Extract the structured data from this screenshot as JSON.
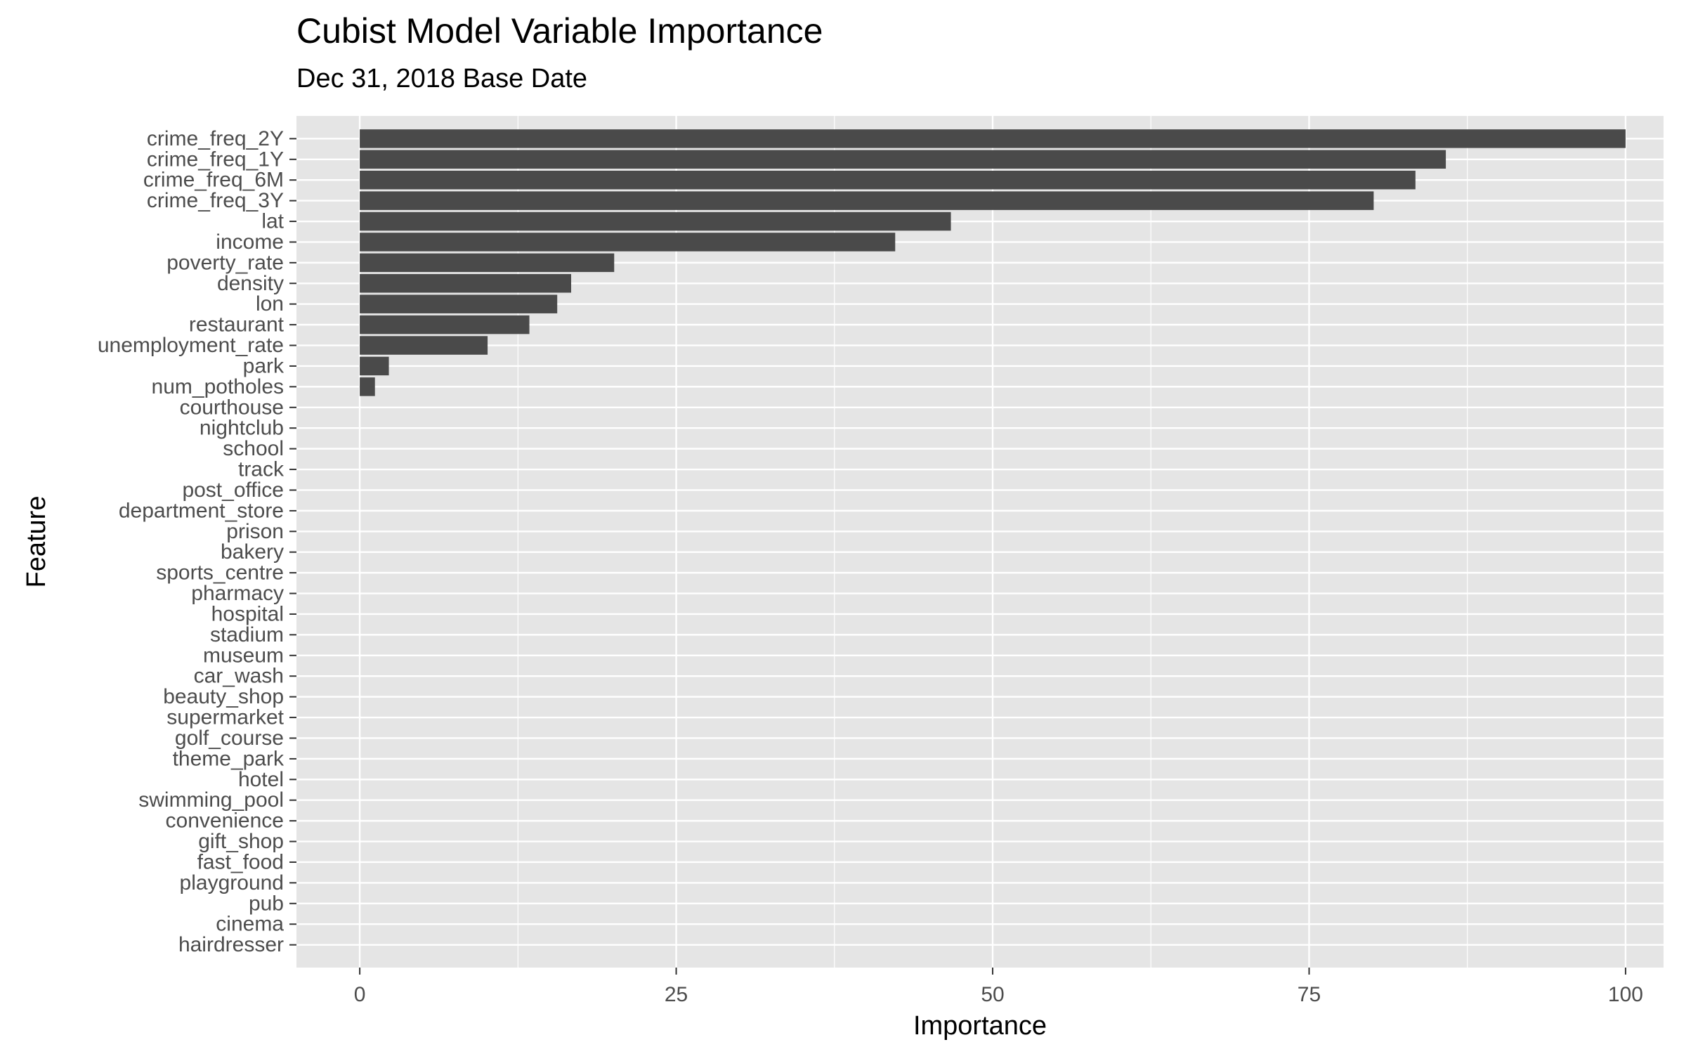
{
  "chart_data": {
    "type": "bar",
    "orientation": "horizontal",
    "title": "Cubist Model Variable Importance",
    "subtitle": "Dec 31, 2018 Base Date",
    "xlabel": "Importance",
    "ylabel": "Feature",
    "xlim": [
      -5,
      103
    ],
    "xticks": [
      0,
      25,
      50,
      75,
      100
    ],
    "grid": true,
    "legend": "none",
    "colors": {
      "panel": "#e5e5e5",
      "grid": "#ffffff",
      "bar": "#4a4a4a",
      "tick_text": "#4d4d4d",
      "tick_mark": "#333333"
    },
    "categories": [
      "crime_freq_2Y",
      "crime_freq_1Y",
      "crime_freq_6M",
      "crime_freq_3Y",
      "lat",
      "income",
      "poverty_rate",
      "density",
      "lon",
      "restaurant",
      "unemployment_rate",
      "park",
      "num_potholes",
      "courthouse",
      "nightclub",
      "school",
      "track",
      "post_office",
      "department_store",
      "prison",
      "bakery",
      "sports_centre",
      "pharmacy",
      "hospital",
      "stadium",
      "museum",
      "car_wash",
      "beauty_shop",
      "supermarket",
      "golf_course",
      "theme_park",
      "hotel",
      "swimming_pool",
      "convenience",
      "gift_shop",
      "fast_food",
      "playground",
      "pub",
      "cinema",
      "hairdresser"
    ],
    "values": [
      100,
      85.8,
      83.4,
      80.1,
      46.7,
      42.3,
      20.1,
      16.7,
      15.6,
      13.4,
      10.1,
      2.3,
      1.2,
      0,
      0,
      0,
      0,
      0,
      0,
      0,
      0,
      0,
      0,
      0,
      0,
      0,
      0,
      0,
      0,
      0,
      0,
      0,
      0,
      0,
      0,
      0,
      0,
      0,
      0,
      0
    ]
  }
}
